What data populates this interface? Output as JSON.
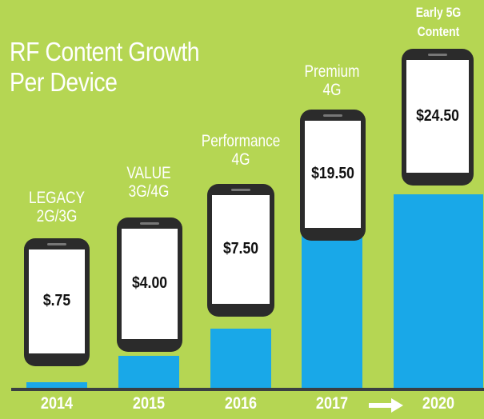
{
  "title_line1": "RF Content Growth",
  "title_line2": "Per Device",
  "colors": {
    "background": "#b5d653",
    "bar": "#19a8e8",
    "phone_body": "#2b2b2b",
    "text": "#ffffff"
  },
  "chart_data": {
    "type": "bar",
    "title": "RF Content Growth Per Device",
    "categories": [
      "2014",
      "2015",
      "2016",
      "2017",
      "2020"
    ],
    "values": [
      0.75,
      4.0,
      7.5,
      19.5,
      24.5
    ],
    "value_labels": [
      "$.75",
      "$4.00",
      "$7.50",
      "$19.50",
      "$24.50"
    ],
    "category_labels": [
      [
        "LEGACY",
        "2G/3G"
      ],
      [
        "VALUE",
        "3G/4G"
      ],
      [
        "Performance",
        "4G"
      ],
      [
        "Premium",
        "4G"
      ],
      [
        "Early 5G",
        "Content"
      ]
    ],
    "xlabel": "",
    "ylabel": "",
    "grid": false,
    "arrow_icon": "right-arrow-icon"
  }
}
